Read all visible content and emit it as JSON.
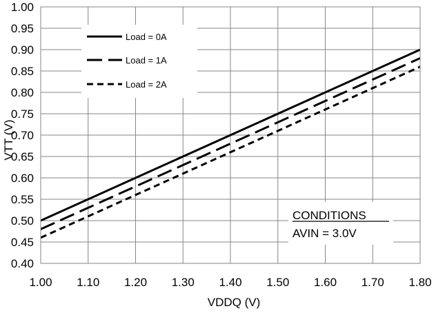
{
  "chart_data": {
    "type": "line",
    "title": "",
    "xlabel": "VDDQ (V)",
    "ylabel": "VTT (V)",
    "xlim": [
      1.0,
      1.8
    ],
    "ylim": [
      0.4,
      1.0
    ],
    "x_ticks": [
      "1.00",
      "1.10",
      "1.20",
      "1.30",
      "1.40",
      "1.50",
      "1.60",
      "1.70",
      "1.80"
    ],
    "y_ticks": [
      "0.40",
      "0.45",
      "0.50",
      "0.55",
      "0.60",
      "0.65",
      "0.70",
      "0.75",
      "0.80",
      "0.85",
      "0.90",
      "0.95",
      "1.00"
    ],
    "grid": true,
    "legend_position": "top-left",
    "series": [
      {
        "name": "Load = 0A",
        "style": "solid",
        "color": "#000000",
        "x": [
          1.0,
          1.8
        ],
        "y": [
          0.5,
          0.9
        ]
      },
      {
        "name": "Load = 1A",
        "style": "long-dash",
        "color": "#000000",
        "x": [
          1.0,
          1.8
        ],
        "y": [
          0.48,
          0.88
        ]
      },
      {
        "name": "Load = 2A",
        "style": "short-dash",
        "color": "#000000",
        "x": [
          1.0,
          1.8
        ],
        "y": [
          0.46,
          0.86
        ]
      }
    ],
    "annotation": {
      "heading": "CONDITIONS",
      "text": "AVIN = 3.0V"
    }
  }
}
